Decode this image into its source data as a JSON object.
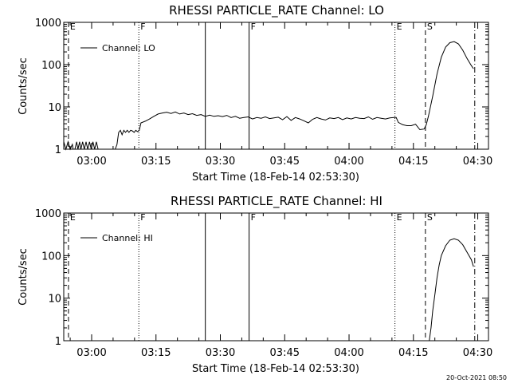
{
  "window": {
    "timestamp": "20-Oct-2021 08:50"
  },
  "chart_data": [
    {
      "type": "line",
      "title": "RHESSI PARTICLE_RATE Channel: LO",
      "xlabel": "Start Time (18-Feb-14 02:53:30)",
      "ylabel": "Counts/sec",
      "yscale": "log",
      "ylim": [
        1,
        1000
      ],
      "xlim_minutes_after_start": [
        0,
        99
      ],
      "y_ticks": [
        "1",
        "10",
        "100",
        "1000"
      ],
      "x_ticks": [
        {
          "minute": 6.5,
          "label": "03:00"
        },
        {
          "minute": 21.5,
          "label": "03:15"
        },
        {
          "minute": 36.5,
          "label": "03:30"
        },
        {
          "minute": 51.5,
          "label": "03:45"
        },
        {
          "minute": 66.5,
          "label": "04:00"
        },
        {
          "minute": 81.5,
          "label": "04:15"
        },
        {
          "minute": 96.5,
          "label": "04:30"
        }
      ],
      "legend": {
        "label": "Channel: LO",
        "position": "top-left"
      },
      "markers": [
        {
          "minute": 1.1,
          "style": "dashed",
          "label": "E"
        },
        {
          "minute": 17.5,
          "style": "dotted",
          "label": "F"
        },
        {
          "minute": 33.0,
          "style": "solid",
          "label": ""
        },
        {
          "minute": 43.2,
          "style": "solid",
          "label": "F"
        },
        {
          "minute": 77.2,
          "style": "dotted",
          "label": "E"
        },
        {
          "minute": 84.3,
          "style": "dashed",
          "label": "S"
        },
        {
          "minute": 95.8,
          "style": "dashdot",
          "label": ""
        }
      ],
      "series": [
        {
          "name": "Channel: LO",
          "x": [
            0,
            0.5,
            1.0,
            1.5,
            2.0,
            2.2,
            2.6,
            3.0,
            3.3,
            3.7,
            4.0,
            4.4,
            4.8,
            5.2,
            5.6,
            6.0,
            6.4,
            6.8,
            7.2,
            7.6,
            8.0,
            8.4,
            8.8,
            9.2,
            9.6,
            10.0,
            10.4,
            10.8,
            11.2,
            11.6,
            12.0,
            12.4,
            12.8,
            13.2,
            13.6,
            14.0,
            14.4,
            14.8,
            15.2,
            15.6,
            16.0,
            16.4,
            16.8,
            17.2,
            17.6,
            18.0,
            19.0,
            20.0,
            21.0,
            22.0,
            23.0,
            24.0,
            25.0,
            26.0,
            27.0,
            28.0,
            29.0,
            30.0,
            31.0,
            32.0,
            33.0,
            34.0,
            35.0,
            36.0,
            37.0,
            38.0,
            39.0,
            40.0,
            41.0,
            42.0,
            43.0,
            44.0,
            45.0,
            46.0,
            47.0,
            48.0,
            49.0,
            50.0,
            51.0,
            52.0,
            53.0,
            54.0,
            55.0,
            56.0,
            57.0,
            58.0,
            59.0,
            60.0,
            61.0,
            62.0,
            63.0,
            64.0,
            65.0,
            66.0,
            67.0,
            68.0,
            69.0,
            70.0,
            71.0,
            72.0,
            73.0,
            74.0,
            75.0,
            76.0,
            77.0,
            77.5,
            78.0,
            79.0,
            80.0,
            81.0,
            82.0,
            83.0,
            84.0,
            84.5,
            85.0,
            86.0,
            87.0,
            88.0,
            89.0,
            90.0,
            91.0,
            92.0,
            93.0,
            94.0,
            95.0,
            95.5
          ],
          "values": [
            1.5,
            1,
            1.5,
            1,
            1.3,
            1,
            1,
            1.5,
            1,
            1.5,
            1,
            1.5,
            1,
            1.5,
            1,
            1.5,
            1,
            1.5,
            1,
            1.5,
            1,
            1,
            1,
            1,
            1,
            1,
            1,
            1,
            1,
            1,
            1,
            1.3,
            2.5,
            2.8,
            2.2,
            2.8,
            2.5,
            2.8,
            2.5,
            2.8,
            2.7,
            2.5,
            2.8,
            2.6,
            2.8,
            4.2,
            4.6,
            5.2,
            6.0,
            6.8,
            7.2,
            7.5,
            7.0,
            7.6,
            6.8,
            7.2,
            6.6,
            6.9,
            6.3,
            6.6,
            6.0,
            6.4,
            6.0,
            6.2,
            5.9,
            6.3,
            5.6,
            6.0,
            5.4,
            5.6,
            5.8,
            5.2,
            5.6,
            5.4,
            5.8,
            5.3,
            5.5,
            5.7,
            5.0,
            5.9,
            4.8,
            5.6,
            5.2,
            4.7,
            4.2,
            5.1,
            5.6,
            5.2,
            4.9,
            5.5,
            5.3,
            5.6,
            5.0,
            5.5,
            5.2,
            5.6,
            5.4,
            5.3,
            5.8,
            5.1,
            5.6,
            5.4,
            5.2,
            5.5,
            5.6,
            5.6,
            4.3,
            3.8,
            3.6,
            3.6,
            3.9,
            2.9,
            3.0,
            3.8,
            6.0,
            18,
            60,
            150,
            260,
            330,
            350,
            310,
            220,
            140,
            95,
            80
          ]
        }
      ]
    },
    {
      "type": "line",
      "title": "RHESSI PARTICLE_RATE Channel: HI",
      "xlabel": "Start Time (18-Feb-14 02:53:30)",
      "ylabel": "Counts/sec",
      "yscale": "log",
      "ylim": [
        1,
        1000
      ],
      "xlim_minutes_after_start": [
        0,
        99
      ],
      "y_ticks": [
        "1",
        "10",
        "100",
        "1000"
      ],
      "x_ticks": [
        {
          "minute": 6.5,
          "label": "03:00"
        },
        {
          "minute": 21.5,
          "label": "03:15"
        },
        {
          "minute": 36.5,
          "label": "03:30"
        },
        {
          "minute": 51.5,
          "label": "03:45"
        },
        {
          "minute": 66.5,
          "label": "04:00"
        },
        {
          "minute": 81.5,
          "label": "04:15"
        },
        {
          "minute": 96.5,
          "label": "04:30"
        }
      ],
      "legend": {
        "label": "Channel: HI",
        "position": "top-left"
      },
      "markers": [
        {
          "minute": 1.1,
          "style": "dashed",
          "label": "E"
        },
        {
          "minute": 17.5,
          "style": "dotted",
          "label": "F"
        },
        {
          "minute": 33.0,
          "style": "solid",
          "label": ""
        },
        {
          "minute": 43.2,
          "style": "solid",
          "label": "F"
        },
        {
          "minute": 77.2,
          "style": "dotted",
          "label": "E"
        },
        {
          "minute": 84.3,
          "style": "dashed",
          "label": "S"
        },
        {
          "minute": 95.8,
          "style": "dashdot",
          "label": ""
        }
      ],
      "series": [
        {
          "name": "Channel: HI",
          "x": [
            85.2,
            85.6,
            86.0,
            86.5,
            87.0,
            87.5,
            88.0,
            89.0,
            90.0,
            91.0,
            92.0,
            93.0,
            94.0,
            95.0,
            95.5
          ],
          "values": [
            1,
            2,
            5,
            12,
            30,
            60,
            100,
            170,
            230,
            250,
            230,
            180,
            120,
            80,
            55
          ]
        }
      ]
    }
  ]
}
